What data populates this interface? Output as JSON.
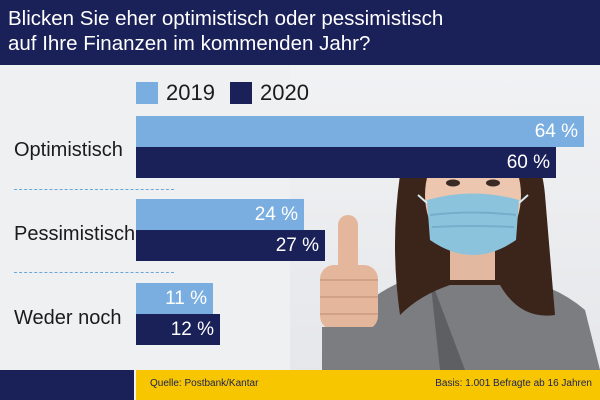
{
  "header": {
    "title": "Blicken Sie eher optimistisch oder pessimistisch\nauf Ihre Finanzen im kommenden Jahr?"
  },
  "chart_data": {
    "type": "bar",
    "orientation": "horizontal",
    "title": "Blicken Sie eher optimistisch oder pessimistisch auf Ihre Finanzen im kommenden Jahr?",
    "categories": [
      "Optimistisch",
      "Pessimistisch",
      "Weder noch"
    ],
    "series": [
      {
        "name": "2019",
        "color": "#7aaee0",
        "values": [
          64,
          24,
          11
        ]
      },
      {
        "name": "2020",
        "color": "#1a2058",
        "values": [
          60,
          27,
          12
        ]
      }
    ],
    "value_labels": [
      [
        "64 %",
        "60 %"
      ],
      [
        "24 %",
        "27 %"
      ],
      [
        "11 %",
        "12 %"
      ]
    ],
    "value_unit": "%",
    "xlim": [
      0,
      64
    ],
    "legend_position": "top",
    "grid": false
  },
  "footer": {
    "source": "Quelle: Postbank/Kantar",
    "basis": "Basis: 1.001 Befragte ab 16 Jahren"
  },
  "colors": {
    "header_bg": "#1a2058",
    "footer_accent": "#f7c600",
    "divider": "#6aa6da"
  },
  "photo": {
    "icon": "woman-with-mask-thumbs-up"
  }
}
